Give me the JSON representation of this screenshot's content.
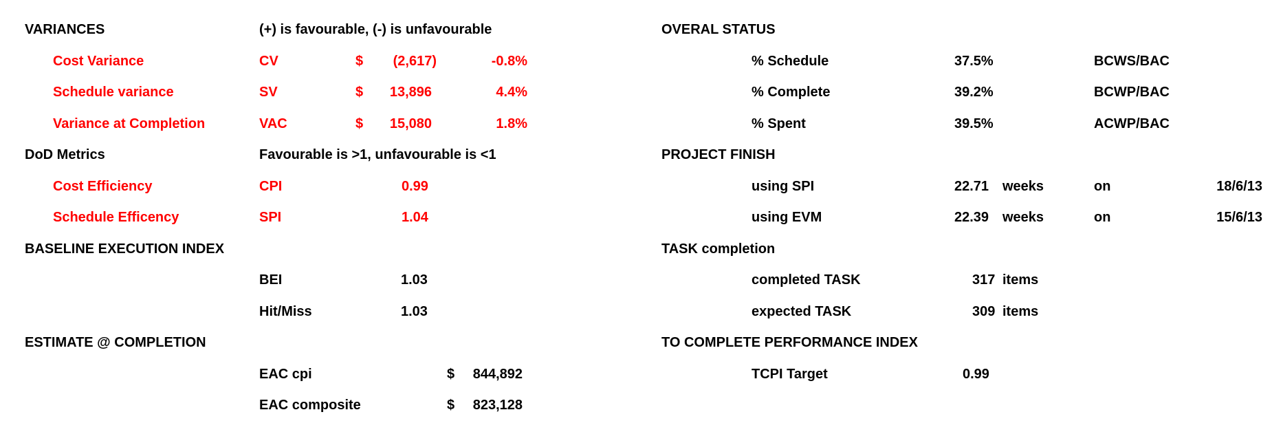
{
  "left": {
    "variances": {
      "title": "VARIANCES",
      "note": "(+) is favourable, (-) is unfavourable",
      "rows": [
        {
          "label": "Cost Variance",
          "code": "CV",
          "currency": "$",
          "amount": "(2,617)",
          "percent": "-0.8%"
        },
        {
          "label": "Schedule variance",
          "code": "SV",
          "currency": "$",
          "amount": "13,896",
          "percent": "4.4%"
        },
        {
          "label": "Variance at Completion",
          "code": "VAC",
          "currency": "$",
          "amount": "15,080",
          "percent": "1.8%"
        }
      ]
    },
    "dod_metrics": {
      "title": "DoD Metrics",
      "note": "Favourable is >1, unfavourable is <1",
      "rows": [
        {
          "label": "Cost Efficiency",
          "code": "CPI",
          "value": "0.99"
        },
        {
          "label": "Schedule Efficency",
          "code": "SPI",
          "value": "1.04"
        }
      ]
    },
    "baseline": {
      "title": "BASELINE EXECUTION INDEX",
      "rows": [
        {
          "code": "BEI",
          "value": "1.03"
        },
        {
          "code": "Hit/Miss",
          "value": "1.03"
        }
      ]
    },
    "estimate": {
      "title": "ESTIMATE @ COMPLETION",
      "rows": [
        {
          "code": "EAC cpi",
          "currency": "$",
          "amount": "844,892"
        },
        {
          "code": "EAC composite",
          "currency": "$",
          "amount": "823,128"
        }
      ]
    }
  },
  "right": {
    "overall_status": {
      "title": "OVERAL STATUS",
      "rows": [
        {
          "label": "% Schedule",
          "value": "37.5%",
          "formula": "BCWS/BAC"
        },
        {
          "label": "% Complete",
          "value": "39.2%",
          "formula": "BCWP/BAC"
        },
        {
          "label": "% Spent",
          "value": "39.5%",
          "formula": "ACWP/BAC"
        }
      ]
    },
    "project_finish": {
      "title": "PROJECT FINISH",
      "rows": [
        {
          "label": "using SPI",
          "value": "22.71",
          "unit": "weeks",
          "on": "on",
          "date": "18/6/13"
        },
        {
          "label": "using EVM",
          "value": "22.39",
          "unit": "weeks",
          "on": "on",
          "date": "15/6/13"
        }
      ]
    },
    "task_completion": {
      "title": "TASK completion",
      "rows": [
        {
          "label": "completed TASK",
          "value": "317",
          "unit": "items"
        },
        {
          "label": "expected TASK",
          "value": "309",
          "unit": "items"
        }
      ]
    },
    "tcpi": {
      "title": "TO COMPLETE PERFORMANCE INDEX",
      "rows": [
        {
          "label": "TCPI Target",
          "value": "0.99"
        }
      ]
    }
  }
}
